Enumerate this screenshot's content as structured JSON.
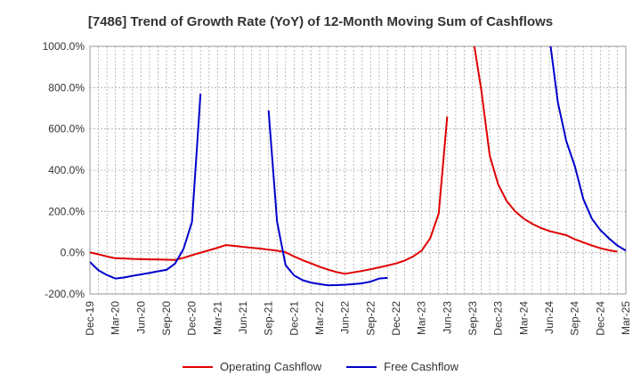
{
  "chart_data": {
    "type": "line",
    "title": "[7486]  Trend of Growth Rate (YoY) of 12-Month Moving Sum of Cashflows",
    "xlabel": "",
    "ylabel": "",
    "ylim": [
      -200,
      1000
    ],
    "ytick_labels": [
      "-200.0%",
      "0.0%",
      "200.0%",
      "400.0%",
      "600.0%",
      "800.0%",
      "1000.0%"
    ],
    "ytick_values": [
      -200,
      0,
      200,
      400,
      600,
      800,
      1000
    ],
    "xtick_labels": [
      "Dec-19",
      "Mar-20",
      "Jun-20",
      "Sep-20",
      "Dec-20",
      "Mar-21",
      "Jun-21",
      "Sep-21",
      "Dec-21",
      "Mar-22",
      "Jun-22",
      "Sep-22",
      "Dec-22",
      "Mar-23",
      "Jun-23",
      "Sep-23",
      "Dec-23",
      "Mar-24",
      "Jun-24",
      "Sep-24",
      "Dec-24",
      "Mar-25"
    ],
    "x": [
      "2019-12",
      "2020-01",
      "2020-02",
      "2020-03",
      "2020-04",
      "2020-05",
      "2020-06",
      "2020-07",
      "2020-08",
      "2020-09",
      "2020-10",
      "2020-11",
      "2020-12",
      "2021-01",
      "2021-02",
      "2021-03",
      "2021-04",
      "2021-05",
      "2021-06",
      "2021-07",
      "2021-08",
      "2021-09",
      "2021-10",
      "2021-11",
      "2021-12",
      "2022-01",
      "2022-02",
      "2022-03",
      "2022-04",
      "2022-05",
      "2022-06",
      "2022-07",
      "2022-08",
      "2022-09",
      "2022-10",
      "2022-11",
      "2022-12",
      "2023-01",
      "2023-02",
      "2023-03",
      "2023-04",
      "2023-05",
      "2023-06",
      "2023-07",
      "2023-08",
      "2023-09",
      "2023-10",
      "2023-11",
      "2023-12",
      "2024-01",
      "2024-02",
      "2024-03",
      "2024-04",
      "2024-05",
      "2024-06",
      "2024-07",
      "2024-08",
      "2024-09",
      "2024-10",
      "2024-11",
      "2024-12",
      "2025-01",
      "2025-02",
      "2025-03"
    ],
    "series": [
      {
        "name": "Operating Cashflow",
        "color": "#e00000",
        "values": [
          2,
          -8,
          -18,
          -27,
          -28,
          -30,
          -31,
          -32,
          -33,
          -34,
          -35,
          -25,
          -12,
          0,
          12,
          24,
          37,
          33,
          28,
          24,
          20,
          15,
          10,
          2,
          -18,
          -36,
          -52,
          -68,
          -82,
          -94,
          -102,
          -95,
          -88,
          -80,
          -71,
          -62,
          -52,
          -38,
          -18,
          10,
          70,
          190,
          660,
          null,
          null,
          1050,
          790,
          470,
          330,
          250,
          200,
          165,
          140,
          120,
          105,
          95,
          85,
          65,
          50,
          35,
          22,
          12,
          5,
          null
        ]
      },
      {
        "name": "Free Cashflow",
        "color": "#0000cc",
        "values": [
          -45,
          -85,
          -108,
          -125,
          -120,
          -112,
          -105,
          -98,
          -90,
          -83,
          -53,
          18,
          150,
          770,
          null,
          null,
          null,
          null,
          null,
          null,
          null,
          690,
          150,
          -60,
          -110,
          -133,
          -145,
          -152,
          -158,
          -157,
          -155,
          -152,
          -148,
          -140,
          -125,
          -122,
          null,
          null,
          null,
          null,
          null,
          null,
          null,
          null,
          null,
          null,
          null,
          null,
          null,
          null,
          null,
          null,
          null,
          null,
          1050,
          730,
          540,
          420,
          260,
          165,
          110,
          70,
          35,
          10
        ]
      }
    ],
    "grid": true,
    "legend": "bottom"
  }
}
